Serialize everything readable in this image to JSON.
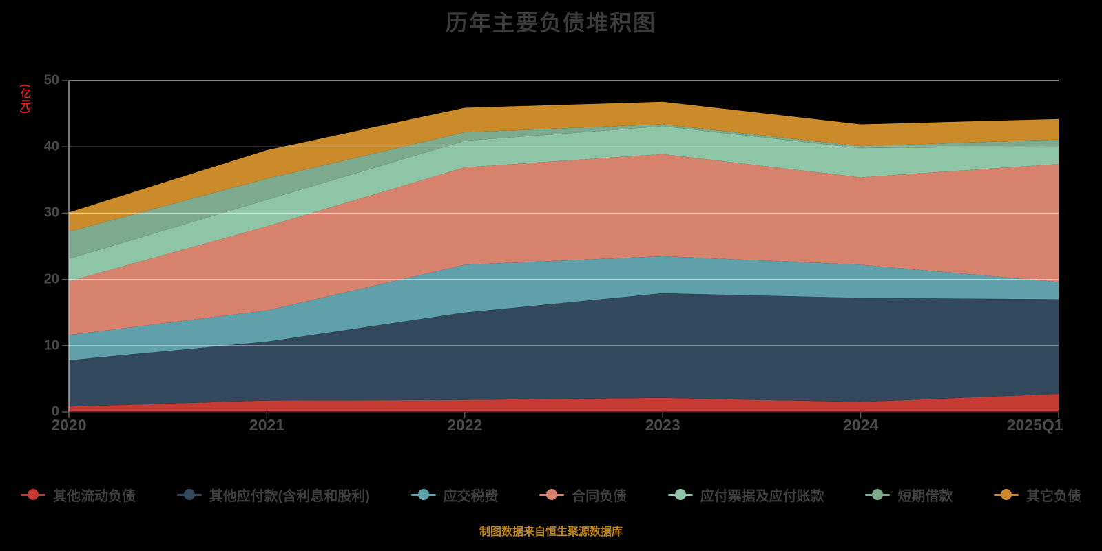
{
  "title": "历年主要负债堆积图",
  "y_axis_unit": "(亿元)",
  "footer": "制图数据来自恒生聚源数据库",
  "colors": {
    "background": "#000000",
    "title_text": "#3b3b3b",
    "axis_label_text": "#4a4a4a",
    "unit_label_text": "#e02020",
    "legend_text": "#3e3e3e",
    "footer_text": "#c08618",
    "grid_line": "#ffffff",
    "axis_line": "#c9c9c9",
    "tick_mark": "#555555"
  },
  "chart_data": {
    "type": "area",
    "stacked": true,
    "grid": true,
    "legend_position": "bottom",
    "title": "历年主要负债堆积图",
    "ylabel": "(亿元)",
    "ylim": [
      0,
      50
    ],
    "y_ticks": [
      0,
      10,
      20,
      30,
      40,
      50
    ],
    "categories": [
      "2020",
      "2021",
      "2022",
      "2023",
      "2024",
      "2025Q1"
    ],
    "series": [
      {
        "name": "其他流动负债",
        "color": "#c53a32",
        "values": [
          0.8,
          1.7,
          1.8,
          2.1,
          1.5,
          2.7
        ]
      },
      {
        "name": "其他应付款(含利息和股利)",
        "color": "#32495d",
        "values": [
          7.0,
          8.9,
          13.2,
          15.8,
          15.7,
          14.3
        ]
      },
      {
        "name": "应交税费",
        "color": "#5fa0ab",
        "values": [
          3.8,
          4.7,
          7.2,
          5.6,
          5.0,
          2.6
        ]
      },
      {
        "name": "合同负债",
        "color": "#d6826c",
        "values": [
          8.1,
          12.7,
          14.7,
          15.4,
          13.2,
          17.8
        ]
      },
      {
        "name": "应付票据及应付账款",
        "color": "#8ec5a7",
        "values": [
          3.4,
          4.0,
          4.0,
          4.2,
          4.4,
          2.7
        ]
      },
      {
        "name": "短期借款",
        "color": "#7daa8d",
        "values": [
          4.1,
          3.2,
          1.3,
          0.3,
          0.3,
          1.0
        ]
      },
      {
        "name": "其它负债",
        "color": "#cb8b2a",
        "values": [
          2.9,
          4.3,
          3.7,
          3.4,
          3.3,
          3.1
        ]
      }
    ],
    "stacked_totals": [
      30.1,
      39.5,
      45.9,
      46.8,
      43.4,
      44.2
    ]
  }
}
